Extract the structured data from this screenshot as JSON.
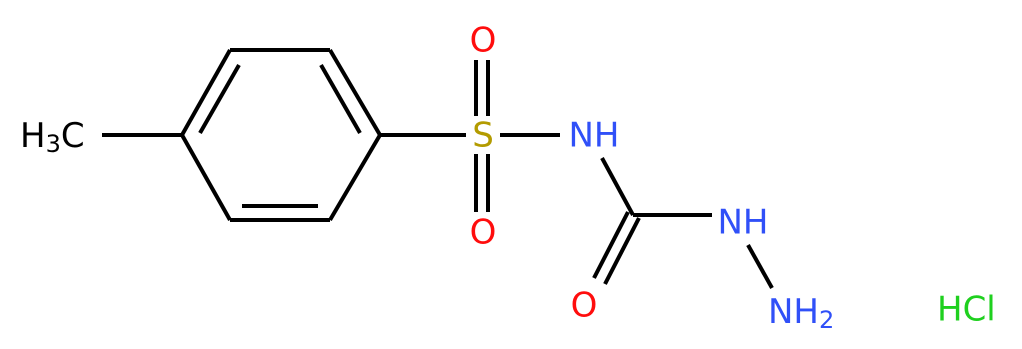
{
  "atoms": {
    "methyl": {
      "main": "H",
      "sub": "3",
      "tail": "C"
    },
    "sulfur": "S",
    "oxygen_top": "O",
    "oxygen_bottom": "O",
    "amide_n": "NH",
    "hydrazine_n": "NH",
    "carbonyl_o": "O",
    "amine": {
      "main": "NH",
      "sub": "2"
    }
  },
  "salt": "HCl"
}
